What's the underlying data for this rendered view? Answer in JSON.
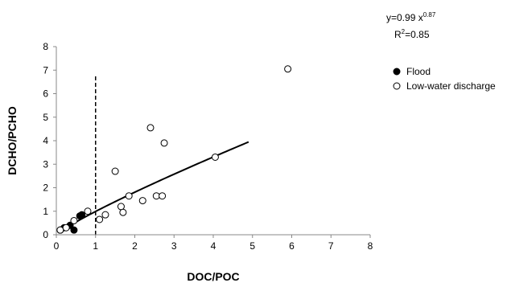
{
  "chart_data": {
    "type": "scatter",
    "xlabel": "DOC/POC",
    "ylabel": "DCHO/PCHO",
    "xlim": [
      0,
      8
    ],
    "ylim": [
      0,
      8
    ],
    "xticks": [
      "0",
      "1",
      "2",
      "3",
      "4",
      "5",
      "6",
      "7",
      "8"
    ],
    "yticks": [
      "0",
      "1",
      "2",
      "3",
      "4",
      "5",
      "6",
      "7",
      "8"
    ],
    "grid": false,
    "legend_position": "right",
    "series": [
      {
        "name": "Flood",
        "marker": "filled-circle",
        "color": "#000000",
        "points": [
          [
            0.1,
            0.2
          ],
          [
            0.2,
            0.3
          ],
          [
            0.35,
            0.4
          ],
          [
            0.45,
            0.2
          ],
          [
            0.6,
            0.8
          ],
          [
            0.65,
            0.85
          ]
        ]
      },
      {
        "name": "Low-water discharge",
        "marker": "open-circle",
        "color": "#000000",
        "points": [
          [
            0.1,
            0.2
          ],
          [
            0.25,
            0.3
          ],
          [
            0.45,
            0.6
          ],
          [
            0.8,
            1.0
          ],
          [
            1.1,
            0.65
          ],
          [
            1.25,
            0.85
          ],
          [
            1.5,
            2.7
          ],
          [
            1.65,
            1.2
          ],
          [
            1.7,
            0.95
          ],
          [
            1.85,
            1.65
          ],
          [
            2.2,
            1.45
          ],
          [
            2.4,
            4.55
          ],
          [
            2.55,
            1.65
          ],
          [
            2.7,
            1.65
          ],
          [
            2.75,
            3.9
          ],
          [
            4.05,
            3.3
          ],
          [
            5.9,
            7.05
          ]
        ]
      }
    ],
    "fit": {
      "type": "power",
      "a": 0.99,
      "b": 0.87,
      "x_range": [
        0.05,
        4.9
      ],
      "equation_prefix": "y=0.99 x",
      "equation_exponent": "0.87",
      "r2_prefix": "R",
      "r2_exponent": "2",
      "r2_value": "=0.85"
    },
    "reference_line": {
      "x": 1,
      "y_range": [
        0,
        6.8
      ],
      "style": "dashed"
    }
  }
}
